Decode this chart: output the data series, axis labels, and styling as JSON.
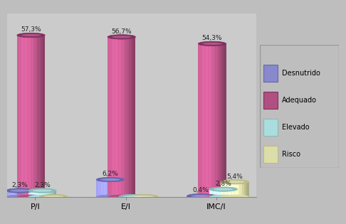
{
  "groups": [
    "P/I",
    "E/I",
    "IMC/I"
  ],
  "series": [
    "Desnutrido",
    "Adequado",
    "Elevado",
    "Risco"
  ],
  "values": [
    [
      2.3,
      57.3,
      2.3,
      0.15
    ],
    [
      6.2,
      56.7,
      0.15,
      0.15
    ],
    [
      0.4,
      54.3,
      2.8,
      5.4
    ]
  ],
  "labels": [
    [
      "2,3%",
      "57,3%",
      "2,3%",
      ""
    ],
    [
      "6,2%",
      "56,7%",
      "",
      ""
    ],
    [
      "0,4%",
      "54,3%",
      "2,8%",
      "5,4%"
    ]
  ],
  "colors_face": [
    "#8888CC",
    "#B05080",
    "#AADDDD",
    "#DDDDAA"
  ],
  "colors_dark": [
    "#6666AA",
    "#803060",
    "#88BBBB",
    "#BBBB88"
  ],
  "colors_light": [
    "#AAAAEE",
    "#D070A0",
    "#CCEEEE",
    "#EEEECC"
  ],
  "bar_width": 0.055,
  "group_positions": [
    0.18,
    0.5,
    0.82
  ],
  "series_offsets": [
    -0.055,
    -0.015,
    0.025,
    0.065
  ],
  "ylim": [
    0,
    65
  ],
  "background_color": "#BEBEBE",
  "plot_bg_color": "#CBCBCB",
  "floor_color": "#A0A0A0",
  "label_fontsize": 6.5,
  "legend_fontsize": 7,
  "xtick_fontsize": 8
}
